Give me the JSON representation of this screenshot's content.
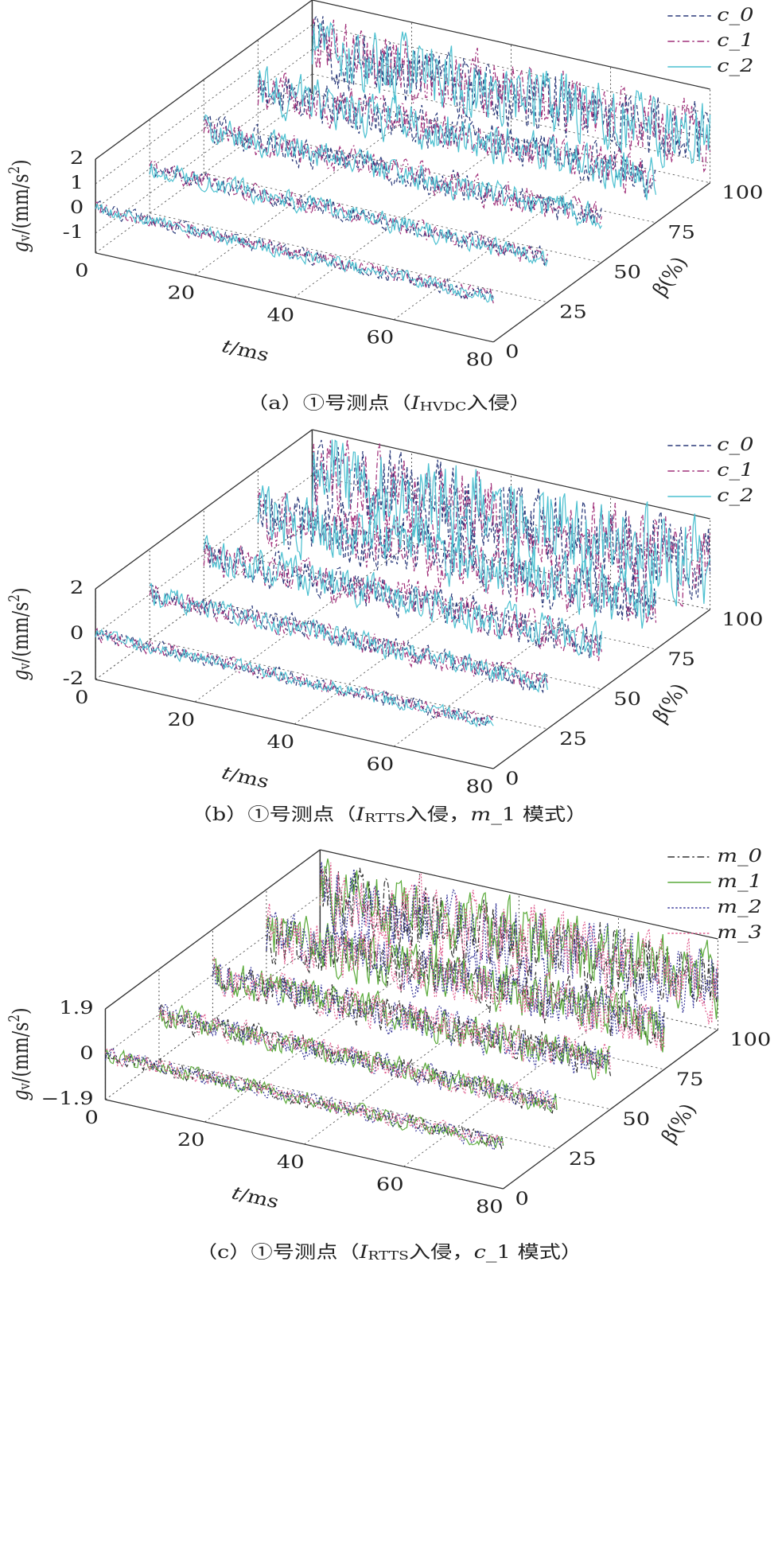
{
  "chart_data": [
    {
      "type": "waterfall3d",
      "caption": [
        {
          "text": "（a）①号测点（",
          "style": "normal"
        },
        {
          "text": "I",
          "style": "italic"
        },
        {
          "text": "HVDC",
          "style": "sub"
        },
        {
          "text": "入侵）",
          "style": "normal"
        }
      ],
      "xlabel": [
        {
          "text": "t",
          "style": "italic"
        },
        {
          "text": "/ms",
          "style": "normal"
        }
      ],
      "ylabel": [
        {
          "text": "g",
          "style": "italic"
        },
        {
          "text": "v",
          "style": "sub"
        },
        {
          "text": "/(mm/s",
          "style": "normal"
        },
        {
          "text": "2",
          "style": "sup"
        },
        {
          "text": ")",
          "style": "normal"
        }
      ],
      "zlabel": [
        {
          "text": "β",
          "style": "italic"
        },
        {
          "text": "(%)",
          "style": "normal"
        }
      ],
      "xlim": [
        0,
        80
      ],
      "xticks": [
        0,
        20,
        40,
        60,
        80
      ],
      "ylim": [
        -1.8,
        2
      ],
      "yticks": [
        -1,
        0,
        1,
        2
      ],
      "zlim": [
        0,
        100
      ],
      "zticks": [
        0,
        25,
        50,
        75,
        100
      ],
      "z": [
        0,
        25,
        50,
        75,
        100
      ],
      "legend": "upper right",
      "grid": true,
      "series": [
        {
          "name": "c_0",
          "color": "#2b3a7a",
          "dash": "dashed",
          "values": [
            0.35,
            0.45,
            0.7,
            1.0,
            1.6
          ]
        },
        {
          "name": "c_1",
          "color": "#a0307a",
          "dash": "dashdot",
          "values": [
            0.35,
            0.45,
            0.7,
            1.0,
            1.6
          ]
        },
        {
          "name": "c_2",
          "color": "#4cc0d0",
          "dash": "solid",
          "values": [
            0.35,
            0.5,
            0.7,
            1.1,
            1.7
          ]
        }
      ]
    },
    {
      "type": "waterfall3d",
      "caption": [
        {
          "text": "（b）①号测点（",
          "style": "normal"
        },
        {
          "text": "I",
          "style": "italic"
        },
        {
          "text": "RTTS",
          "style": "sub"
        },
        {
          "text": "入侵，",
          "style": "normal"
        },
        {
          "text": "m",
          "style": "italic"
        },
        {
          "text": "_1 模式）",
          "style": "normal"
        }
      ],
      "xlabel": [
        {
          "text": "t",
          "style": "italic"
        },
        {
          "text": "/ms",
          "style": "normal"
        }
      ],
      "ylabel": [
        {
          "text": "g",
          "style": "italic"
        },
        {
          "text": "v",
          "style": "sub"
        },
        {
          "text": "/(mm/s",
          "style": "normal"
        },
        {
          "text": "2",
          "style": "sup"
        },
        {
          "text": ")",
          "style": "normal"
        }
      ],
      "zlabel": [
        {
          "text": "β",
          "style": "italic"
        },
        {
          "text": "(%)",
          "style": "normal"
        }
      ],
      "xlim": [
        0,
        80
      ],
      "xticks": [
        0,
        20,
        40,
        60,
        80
      ],
      "ylim": [
        -2,
        2
      ],
      "yticks": [
        -2,
        0,
        2
      ],
      "zlim": [
        0,
        100
      ],
      "zticks": [
        0,
        25,
        50,
        75,
        100
      ],
      "z": [
        0,
        25,
        50,
        75,
        100
      ],
      "legend": "upper right",
      "grid": true,
      "series": [
        {
          "name": "c_0",
          "color": "#2b3a7a",
          "dash": "dashed",
          "values": [
            0.4,
            0.6,
            1.0,
            1.5,
            2.2
          ]
        },
        {
          "name": "c_1",
          "color": "#a0307a",
          "dash": "dashdot",
          "values": [
            0.4,
            0.6,
            1.0,
            1.5,
            2.2
          ]
        },
        {
          "name": "c_2",
          "color": "#4cc0d0",
          "dash": "solid",
          "values": [
            0.4,
            0.6,
            1.0,
            1.6,
            2.4
          ]
        }
      ]
    },
    {
      "type": "waterfall3d",
      "caption": [
        {
          "text": "（c）①号测点（",
          "style": "normal"
        },
        {
          "text": "I",
          "style": "italic"
        },
        {
          "text": "RTTS",
          "style": "sub"
        },
        {
          "text": "入侵，",
          "style": "normal"
        },
        {
          "text": "c",
          "style": "italic"
        },
        {
          "text": "_1 模式）",
          "style": "normal"
        }
      ],
      "xlabel": [
        {
          "text": "t",
          "style": "italic"
        },
        {
          "text": "/ms",
          "style": "normal"
        }
      ],
      "ylabel": [
        {
          "text": "g",
          "style": "italic"
        },
        {
          "text": "v",
          "style": "sub"
        },
        {
          "text": "/(mm/s",
          "style": "normal"
        },
        {
          "text": "2",
          "style": "sup"
        },
        {
          "text": ")",
          "style": "normal"
        }
      ],
      "zlabel": [
        {
          "text": "β",
          "style": "italic"
        },
        {
          "text": "(%)",
          "style": "normal"
        }
      ],
      "xlim": [
        0,
        80
      ],
      "xticks": [
        0,
        20,
        40,
        60,
        80
      ],
      "ylim": [
        -1.9,
        1.9
      ],
      "yticks": [
        {
          "value": -1.9,
          "label": "−1.9"
        },
        0,
        1.9
      ],
      "zlim": [
        0,
        100
      ],
      "zticks": [
        0,
        25,
        50,
        75,
        100
      ],
      "z": [
        0,
        25,
        50,
        75,
        100
      ],
      "legend": "upper right",
      "grid": true,
      "series": [
        {
          "name": "m_0",
          "color": "#333333",
          "dash": "dashdot",
          "values": [
            0.4,
            0.6,
            0.9,
            1.3,
            1.8
          ]
        },
        {
          "name": "m_1",
          "color": "#5aaa3a",
          "dash": "solid",
          "values": [
            0.4,
            0.6,
            0.9,
            1.3,
            1.8
          ]
        },
        {
          "name": "m_2",
          "color": "#3a3a9a",
          "dash": "dotted",
          "values": [
            0.4,
            0.6,
            0.9,
            1.3,
            1.8
          ]
        },
        {
          "name": "m_3",
          "color": "#e06090",
          "dash": "dotted",
          "values": [
            0.4,
            0.6,
            0.9,
            1.4,
            1.9
          ]
        }
      ]
    }
  ]
}
